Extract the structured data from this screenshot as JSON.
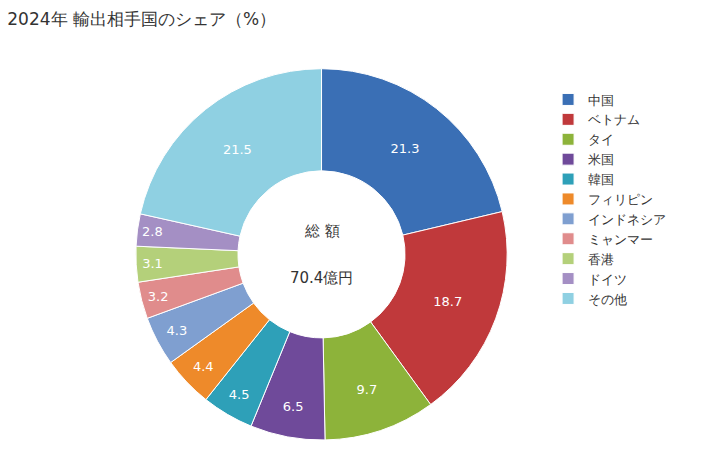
{
  "chart_data": {
    "type": "pie",
    "title": "2024年 輸出相手国のシェア（%）",
    "categories": [
      "中国",
      "ベトナム",
      "タイ",
      "米国",
      "韓国",
      "フィリピン",
      "インドネシア",
      "ミャンマー",
      "香港",
      "ドイツ",
      "その他"
    ],
    "values": [
      21.3,
      18.7,
      9.7,
      6.5,
      4.5,
      4.4,
      4.3,
      3.2,
      3.1,
      2.8,
      21.5
    ],
    "colors": [
      "#3a6fb5",
      "#c0393b",
      "#8db33a",
      "#6f4a9a",
      "#2ea0b8",
      "#ee8a2a",
      "#7f9fd0",
      "#e08c8c",
      "#b4d07a",
      "#a48fc4",
      "#8fd0e2"
    ],
    "data_labels": true,
    "legend": "right",
    "annotations": [
      "総 額",
      "70.4億円"
    ]
  }
}
